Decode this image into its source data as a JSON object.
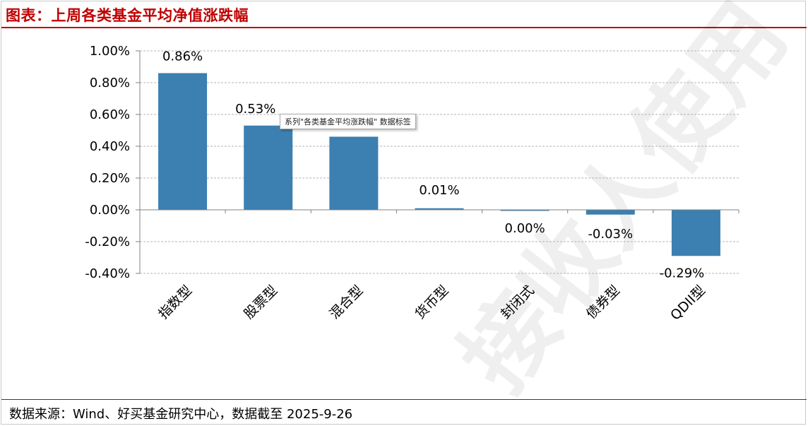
{
  "header": {
    "title": "图表：上周各类基金平均净值涨跌幅"
  },
  "tooltip": {
    "text": "系列\"各类基金平均涨跌幅\" 数据标签"
  },
  "footer": {
    "source": "数据来源：Wind、好买基金研究中心，数据截至 2025-9-26"
  },
  "watermark": {
    "text": "接收人使用"
  },
  "colors": {
    "bar": "#3c7fb1",
    "accent": "#c00000",
    "grid": "#b3b3b3"
  },
  "chart_data": {
    "type": "bar",
    "categories": [
      "指数型",
      "股票型",
      "混合型",
      "货币型",
      "封闭式",
      "债券型",
      "QDII型"
    ],
    "series": [
      {
        "values": [
          0.86,
          0.53,
          0.46,
          0.01,
          -0.005,
          -0.03,
          -0.29
        ]
      }
    ],
    "data_labels": [
      "0.86%",
      "0.53%",
      "",
      "0.01%",
      "0.00%",
      "-0.03%",
      "-0.29%"
    ],
    "y_ticks": [
      1.0,
      0.8,
      0.6,
      0.4,
      0.2,
      0.0,
      -0.2,
      -0.4
    ],
    "y_tick_labels": [
      "1.00%",
      "0.80%",
      "0.60%",
      "0.40%",
      "0.20%",
      "0.00%",
      "-0.20%",
      "-0.40%"
    ],
    "ylim": [
      -0.4,
      1.0
    ],
    "grid": true,
    "legend": "none",
    "unit": "%"
  }
}
